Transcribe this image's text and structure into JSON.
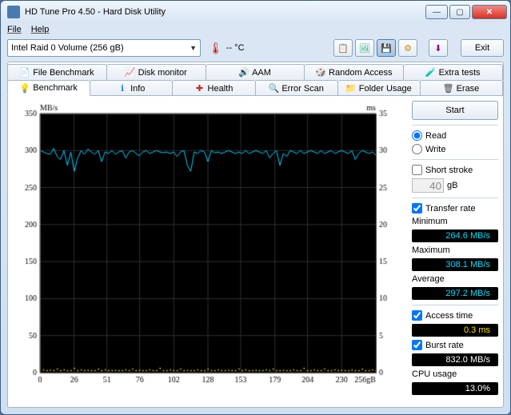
{
  "window": {
    "title": "HD Tune Pro 4.50 - Hard Disk Utility"
  },
  "menu": {
    "file": "File",
    "help": "Help"
  },
  "toolbar": {
    "disk": "Intel  Raid 0 Volume (256 gB)",
    "temp": "-- °C",
    "exit": "Exit"
  },
  "tabsTop": {
    "fileBenchmark": "File Benchmark",
    "diskMonitor": "Disk monitor",
    "aam": "AAM",
    "randomAccess": "Random Access",
    "extraTests": "Extra tests"
  },
  "tabsBottom": {
    "benchmark": "Benchmark",
    "info": "Info",
    "health": "Health",
    "errorScan": "Error Scan",
    "folderUsage": "Folder Usage",
    "erase": "Erase"
  },
  "side": {
    "start": "Start",
    "read": "Read",
    "write": "Write",
    "shortStroke": "Short stroke",
    "strokeVal": "40",
    "strokeUnit": "gB",
    "transferRate": "Transfer rate",
    "minimum": "Minimum",
    "minimumVal": "264.6 MB/s",
    "maximum": "Maximum",
    "maximumVal": "308.1 MB/s",
    "average": "Average",
    "averageVal": "297.2 MB/s",
    "accessTime": "Access time",
    "accessTimeVal": "0.3 ms",
    "burstRate": "Burst rate",
    "burstRateVal": "832.0 MB/s",
    "cpuUsage": "CPU usage",
    "cpuUsageVal": "13.0%"
  },
  "chart": {
    "type": "line",
    "background_color": "#000000",
    "grid_color": "#303030",
    "text_color": "#000000",
    "axis_font_size": 10,
    "y_left_label": "MB/s",
    "y_right_label": "ms",
    "x_label_suffix": "256gB",
    "ylim_left": [
      0,
      350
    ],
    "ytick_step_left": 50,
    "ylim_right": [
      0,
      35
    ],
    "ytick_step_right": 5,
    "xlim": [
      0,
      256
    ],
    "xticks": [
      0,
      26,
      51,
      76,
      102,
      128,
      153,
      179,
      204,
      230
    ],
    "transfer_color": "#00d0ff",
    "transfer_line_width": 1,
    "transfer_values": [
      300,
      298,
      296,
      295,
      303,
      292,
      288,
      300,
      280,
      298,
      272,
      290,
      300,
      295,
      302,
      298,
      295,
      300,
      285,
      298,
      296,
      300,
      295,
      298,
      300,
      290,
      298,
      300,
      296,
      293,
      298,
      300,
      296,
      298,
      300,
      298,
      297,
      298,
      296,
      298,
      292,
      298,
      300,
      280,
      272,
      298,
      296,
      300,
      298,
      285,
      300,
      297,
      298,
      296,
      298,
      300,
      298,
      296,
      298,
      296,
      300,
      296,
      298,
      300,
      298,
      296,
      300,
      290,
      296,
      300,
      280,
      296,
      292,
      300,
      298,
      296,
      300,
      296,
      298,
      300,
      298,
      296,
      300,
      296,
      298,
      300,
      296,
      298,
      300,
      298,
      296,
      300,
      288,
      296,
      300,
      298,
      296,
      298,
      294
    ],
    "access_color": "#ffe000",
    "access_marker_size": 1,
    "access_values_ms": [
      0.3,
      0.4,
      0.3,
      0.35,
      0.3,
      0.5,
      0.3,
      0.4,
      0.3,
      0.3,
      0.6,
      0.3,
      0.4,
      0.3,
      0.35,
      0.3,
      0.3,
      0.5,
      0.3,
      0.4,
      0.3,
      0.3,
      0.35,
      0.3,
      0.3,
      0.4,
      0.3,
      0.5,
      0.3,
      0.35,
      0.3,
      0.3,
      0.4,
      0.3,
      0.3,
      0.6,
      0.3,
      0.3,
      0.4,
      0.3,
      0.3,
      0.5,
      0.3,
      0.35,
      0.3,
      0.3,
      0.4,
      0.3,
      0.3,
      0.5,
      0.3,
      0.3,
      0.4,
      0.3,
      0.3,
      0.35,
      0.3,
      0.3,
      0.5,
      0.3,
      0.4,
      0.3,
      0.3,
      0.35,
      0.3,
      0.3,
      0.4,
      0.3,
      0.5,
      0.3,
      0.3,
      0.35,
      0.3,
      0.3,
      0.4,
      0.3,
      0.3,
      0.6,
      0.3,
      0.3,
      0.4,
      0.3,
      0.3,
      0.5,
      0.3,
      0.3,
      0.4,
      0.3,
      0.35,
      0.3,
      0.3,
      0.4,
      0.3,
      0.3,
      0.5,
      0.3,
      0.3,
      0.4,
      0.3
    ]
  }
}
